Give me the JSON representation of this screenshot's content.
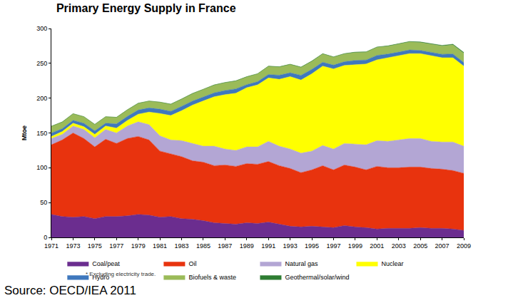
{
  "chart_data": {
    "type": "area",
    "title": "Primary Energy Supply in France",
    "y_label": "Mtoe",
    "annotations": [
      "* Excluding electricity trade.",
      "Source: OECD/IEA 2011"
    ],
    "stacked": true,
    "grid": false,
    "legend": "bottom",
    "x": [
      1971,
      1972,
      1973,
      1974,
      1975,
      1976,
      1977,
      1978,
      1979,
      1980,
      1981,
      1982,
      1983,
      1984,
      1985,
      1986,
      1987,
      1988,
      1989,
      1990,
      1991,
      1992,
      1993,
      1994,
      1995,
      1996,
      1997,
      1998,
      1999,
      2000,
      2001,
      2002,
      2003,
      2004,
      2005,
      2006,
      2007,
      2008,
      2009
    ],
    "xlim": [
      1971,
      2009
    ],
    "xticks": [
      1971,
      1973,
      1975,
      1977,
      1979,
      1981,
      1983,
      1985,
      1987,
      1989,
      1991,
      1993,
      1995,
      1997,
      1999,
      2001,
      2003,
      2005,
      2007,
      2009
    ],
    "ylim": [
      0,
      300
    ],
    "yticks": [
      0,
      50,
      100,
      150,
      200,
      250,
      300
    ],
    "series": [
      {
        "name": "Coal/peat",
        "color": "#6b2d8f",
        "values": [
          33,
          30,
          29,
          30,
          27,
          30,
          30,
          31,
          33,
          32,
          29,
          30,
          27,
          26,
          24,
          21,
          20,
          19,
          21,
          20,
          22,
          19,
          16,
          15,
          16,
          15,
          14,
          17,
          15,
          14,
          12,
          13,
          13,
          13,
          14,
          13,
          13,
          12,
          10
        ]
      },
      {
        "name": "Oil",
        "color": "#e8330e",
        "values": [
          100,
          110,
          121,
          112,
          103,
          111,
          105,
          111,
          112,
          108,
          95,
          90,
          89,
          84,
          84,
          82,
          84,
          83,
          85,
          85,
          87,
          84,
          83,
          78,
          81,
          88,
          83,
          87,
          86,
          83,
          90,
          87,
          87,
          88,
          87,
          86,
          85,
          84,
          82
        ]
      },
      {
        "name": "Natural gas",
        "color": "#b3a6d4",
        "values": [
          9,
          8,
          10,
          13,
          13,
          14,
          15,
          18,
          21,
          22,
          22,
          20,
          23,
          25,
          23,
          28,
          23,
          23,
          24,
          25,
          29,
          28,
          28,
          28,
          27,
          29,
          30,
          31,
          33,
          36,
          37,
          38,
          40,
          41,
          41,
          39,
          39,
          41,
          39
        ]
      },
      {
        "name": "Nuclear",
        "color": "#ffff00",
        "values": [
          3,
          4,
          4,
          4,
          5,
          5,
          7,
          8,
          11,
          18,
          32,
          35,
          43,
          55,
          65,
          71,
          78,
          82,
          85,
          89,
          91,
          96,
          104,
          105,
          111,
          114,
          115,
          112,
          114,
          116,
          116,
          120,
          121,
          122,
          122,
          123,
          121,
          121,
          115
        ]
      },
      {
        "name": "Hydro",
        "color": "#3f78bd",
        "values": [
          4.8,
          4.1,
          4.1,
          4.9,
          5.0,
          4.0,
          6.0,
          5.7,
          5.9,
          6.0,
          6.2,
          6.1,
          6.2,
          5.8,
          5.6,
          5.6,
          6.0,
          6.3,
          4.4,
          4.6,
          5.0,
          5.9,
          5.4,
          6.8,
          6.3,
          5.6,
          5.4,
          5.3,
          6.2,
          5.8,
          6.4,
          5.3,
          5.1,
          5.2,
          4.5,
          4.9,
          5.0,
          5.5,
          5.0
        ]
      },
      {
        "name": "Biofuels & waste",
        "color": "#9bbb59",
        "values": [
          9.8,
          9.6,
          9.5,
          9.4,
          9.3,
          9.3,
          9.4,
          9.5,
          9.7,
          9.8,
          10,
          10.2,
          10.5,
          10.8,
          11,
          11.2,
          11.3,
          11.4,
          11.2,
          11.3,
          11.8,
          12,
          12.1,
          11.6,
          11.7,
          12,
          11.6,
          11.4,
          11.5,
          11.3,
          11.7,
          11.4,
          11.6,
          11.7,
          11.6,
          11.6,
          12,
          13,
          13.5
        ]
      },
      {
        "name": "Geothermal/solar/wind",
        "color": "#2e7d32",
        "values": [
          0.1,
          0.1,
          0.1,
          0.1,
          0.1,
          0.1,
          0.1,
          0.1,
          0.1,
          0.1,
          0.1,
          0.1,
          0.1,
          0.1,
          0.2,
          0.2,
          0.2,
          0.2,
          0.2,
          0.2,
          0.2,
          0.2,
          0.2,
          0.2,
          0.3,
          0.3,
          0.3,
          0.3,
          0.4,
          0.4,
          0.4,
          0.4,
          0.5,
          0.5,
          0.6,
          0.7,
          0.8,
          1.0,
          1.2
        ]
      }
    ]
  }
}
